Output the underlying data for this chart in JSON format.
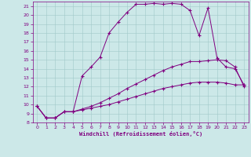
{
  "xlabel": "Windchill (Refroidissement éolien,°C)",
  "background_color": "#cce8e8",
  "line_color": "#800080",
  "xlim": [
    -0.5,
    23.5
  ],
  "ylim": [
    8,
    21.5
  ],
  "xticks": [
    0,
    1,
    2,
    3,
    4,
    5,
    6,
    7,
    8,
    9,
    10,
    11,
    12,
    13,
    14,
    15,
    16,
    17,
    18,
    19,
    20,
    21,
    22,
    23
  ],
  "yticks": [
    8,
    9,
    10,
    11,
    12,
    13,
    14,
    15,
    16,
    17,
    18,
    19,
    20,
    21
  ],
  "series": [
    {
      "x": [
        0,
        1,
        2,
        3,
        4,
        5,
        6,
        7,
        8,
        9,
        10,
        11,
        12,
        13,
        14,
        15,
        16,
        17,
        18,
        19,
        20,
        21,
        22,
        23
      ],
      "y": [
        9.8,
        8.5,
        8.5,
        9.2,
        9.2,
        13.2,
        14.2,
        15.3,
        18.0,
        19.2,
        20.3,
        21.2,
        21.2,
        21.3,
        21.2,
        21.3,
        21.2,
        20.5,
        17.7,
        20.8,
        15.2,
        14.2,
        14.0,
        12.2
      ]
    },
    {
      "x": [
        0,
        1,
        2,
        3,
        4,
        5,
        6,
        7,
        8,
        9,
        10,
        11,
        12,
        13,
        14,
        15,
        16,
        17,
        18,
        19,
        20,
        21,
        22,
        23
      ],
      "y": [
        9.8,
        8.5,
        8.5,
        9.2,
        9.2,
        9.5,
        9.8,
        10.2,
        10.7,
        11.2,
        11.8,
        12.3,
        12.8,
        13.3,
        13.8,
        14.2,
        14.5,
        14.8,
        14.8,
        14.9,
        15.0,
        14.9,
        14.2,
        12.0
      ]
    },
    {
      "x": [
        0,
        1,
        2,
        3,
        4,
        5,
        6,
        7,
        8,
        9,
        10,
        11,
        12,
        13,
        14,
        15,
        16,
        17,
        18,
        19,
        20,
        21,
        22,
        23
      ],
      "y": [
        9.8,
        8.5,
        8.5,
        9.2,
        9.2,
        9.4,
        9.6,
        9.8,
        10.0,
        10.3,
        10.6,
        10.9,
        11.2,
        11.5,
        11.8,
        12.0,
        12.2,
        12.4,
        12.5,
        12.5,
        12.5,
        12.4,
        12.2,
        12.2
      ]
    }
  ]
}
